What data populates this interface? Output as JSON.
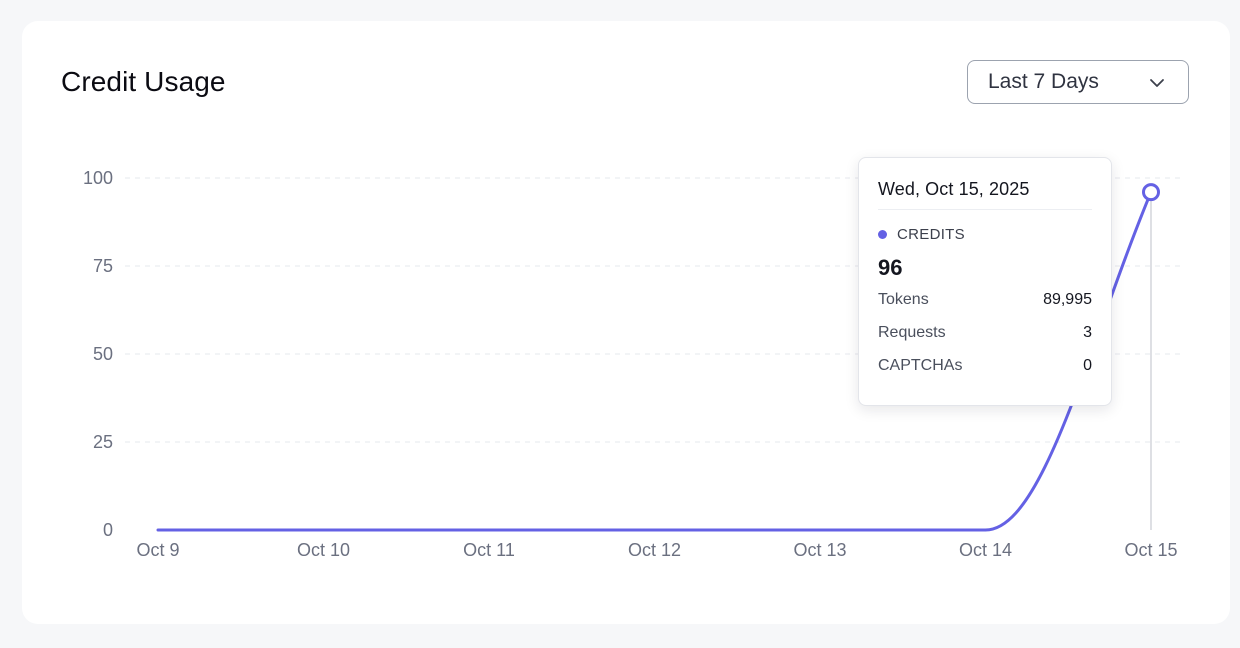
{
  "header": {
    "title": "Credit Usage",
    "range_select": {
      "selected": "Last 7 Days",
      "icon": "chevron-down-icon"
    }
  },
  "colors": {
    "series": "#6461e4",
    "grid": "#e6e8ee",
    "axis_text": "#6b7080"
  },
  "chart_data": {
    "type": "line",
    "title": "",
    "xlabel": "",
    "ylabel": "",
    "categories": [
      "Oct 9",
      "Oct 10",
      "Oct 11",
      "Oct 12",
      "Oct 13",
      "Oct 14",
      "Oct 15"
    ],
    "series": [
      {
        "name": "CREDITS",
        "values": [
          0,
          0,
          0,
          0,
          0,
          0,
          96
        ]
      }
    ],
    "ylim": [
      0,
      100
    ],
    "yticks": [
      0,
      25,
      50,
      75,
      100
    ],
    "grid": true,
    "grid_style": "dashed-horizontal",
    "legend": "none"
  },
  "tooltip": {
    "date": "Wed, Oct 15, 2025",
    "series_label": "CREDITS",
    "series_value": "96",
    "rows": [
      {
        "label": "Tokens",
        "value": "89,995"
      },
      {
        "label": "Requests",
        "value": "3"
      },
      {
        "label": "CAPTCHAs",
        "value": "0"
      }
    ]
  }
}
